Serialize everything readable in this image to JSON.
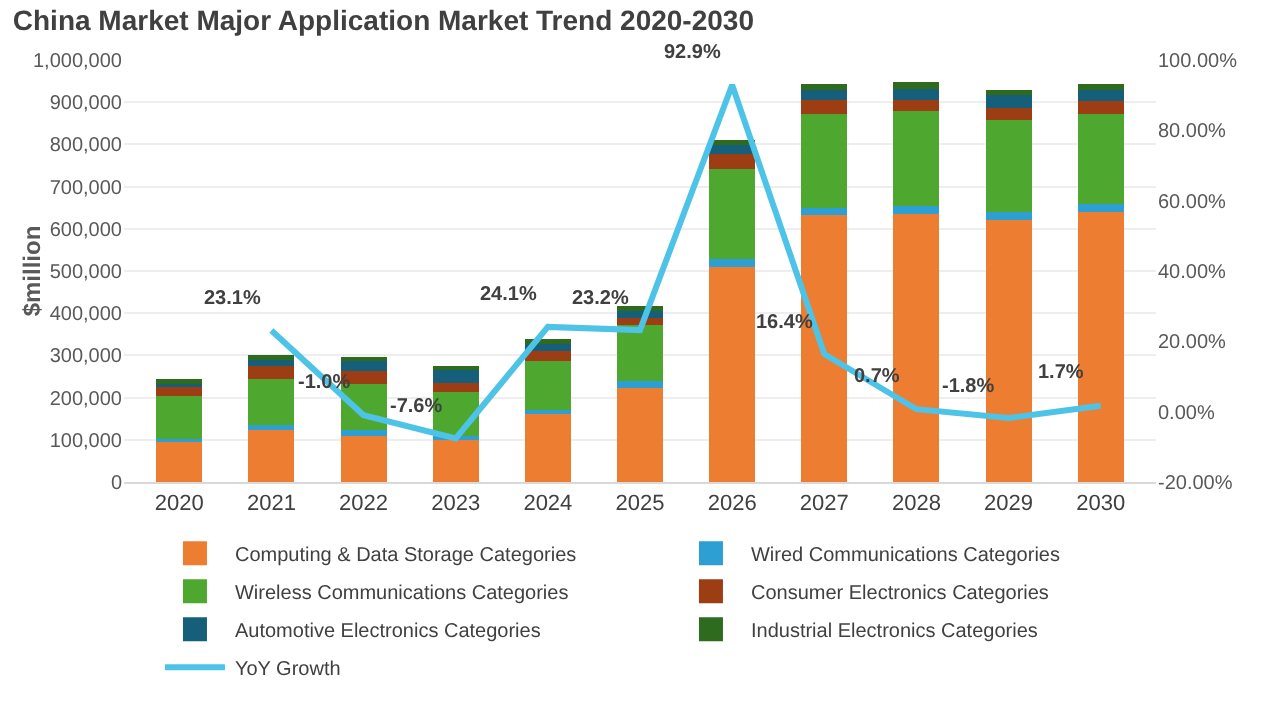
{
  "chart_data": {
    "type": "bar",
    "title": "China Market Major Application Market Trend 2020-2030",
    "ylabel": "$million",
    "stacked": true,
    "categories": [
      "2020",
      "2021",
      "2022",
      "2023",
      "2024",
      "2025",
      "2026",
      "2027",
      "2028",
      "2029",
      "2030"
    ],
    "series": [
      {
        "name": "Computing & Data Storage Categories",
        "color": "#ed7d31",
        "values": [
          97000,
          127000,
          110000,
          100000,
          160000,
          223000,
          510000,
          632000,
          636000,
          620000,
          641000
        ]
      },
      {
        "name": "Wired Communications Categories",
        "color": "#2e9fd3",
        "values": [
          5000,
          9000,
          14000,
          8000,
          11000,
          17000,
          18000,
          18000,
          17000,
          21000,
          18000
        ]
      },
      {
        "name": "Wireless Communications Categories",
        "color": "#4ea72e",
        "values": [
          103000,
          109000,
          108000,
          106000,
          115000,
          131000,
          214000,
          223000,
          227000,
          216000,
          214000
        ]
      },
      {
        "name": "Consumer Electronics Categories",
        "color": "#9c3d14",
        "values": [
          20000,
          30000,
          31000,
          21000,
          24000,
          18000,
          35000,
          33000,
          26000,
          30000,
          29000
        ]
      },
      {
        "name": "Automotive Electronics Categories",
        "color": "#155f7a",
        "values": [
          11000,
          18000,
          23000,
          32000,
          21000,
          17000,
          21000,
          24000,
          26000,
          31000,
          28000
        ]
      },
      {
        "name": "Industrial Electronics Categories",
        "color": "#2f6b1f",
        "values": [
          9000,
          7000,
          10000,
          7000,
          7000,
          12000,
          12000,
          14000,
          17000,
          10000,
          14000
        ]
      },
      {
        "name": "YoY Growth",
        "type": "line",
        "axis": "y2",
        "color": "#4ec3e8",
        "values": [
          null,
          23.1,
          -1.0,
          -7.6,
          24.1,
          23.2,
          92.9,
          16.4,
          0.7,
          -1.8,
          1.7
        ],
        "value_labels": [
          null,
          "23.1%",
          "-1.0%",
          "-7.6%",
          "24.1%",
          "23.2%",
          "92.9%",
          "16.4%",
          "0.7%",
          "-1.8%",
          "1.7%"
        ]
      }
    ],
    "ylim": [
      0,
      1000000
    ],
    "yticks": [
      0,
      {
        "value": 100000,
        "label": "100,000"
      },
      {
        "value": 200000,
        "label": "200,000"
      },
      {
        "value": 300000,
        "label": "300,000"
      },
      {
        "value": 400000,
        "label": "400,000"
      },
      {
        "value": 500000,
        "label": "500,000"
      },
      {
        "value": 600000,
        "label": "600,000"
      },
      {
        "value": 700000,
        "label": "700,000"
      },
      {
        "value": 800000,
        "label": "800,000"
      },
      {
        "value": 900000,
        "label": "900,000"
      },
      {
        "value": 1000000,
        "label": "1,000,000"
      }
    ],
    "y2lim": [
      -20,
      100
    ],
    "y2ticks": [
      {
        "value": -20,
        "label": "-20.00%"
      },
      {
        "value": 0,
        "label": "0.00%"
      },
      {
        "value": 20,
        "label": "20.00%"
      },
      {
        "value": 40,
        "label": "40.00%"
      },
      {
        "value": 60,
        "label": "60.00%"
      },
      {
        "value": 80,
        "label": "80.00%"
      },
      {
        "value": 100,
        "label": "100.00%"
      }
    ],
    "grid": "y",
    "legend": "bottom"
  }
}
